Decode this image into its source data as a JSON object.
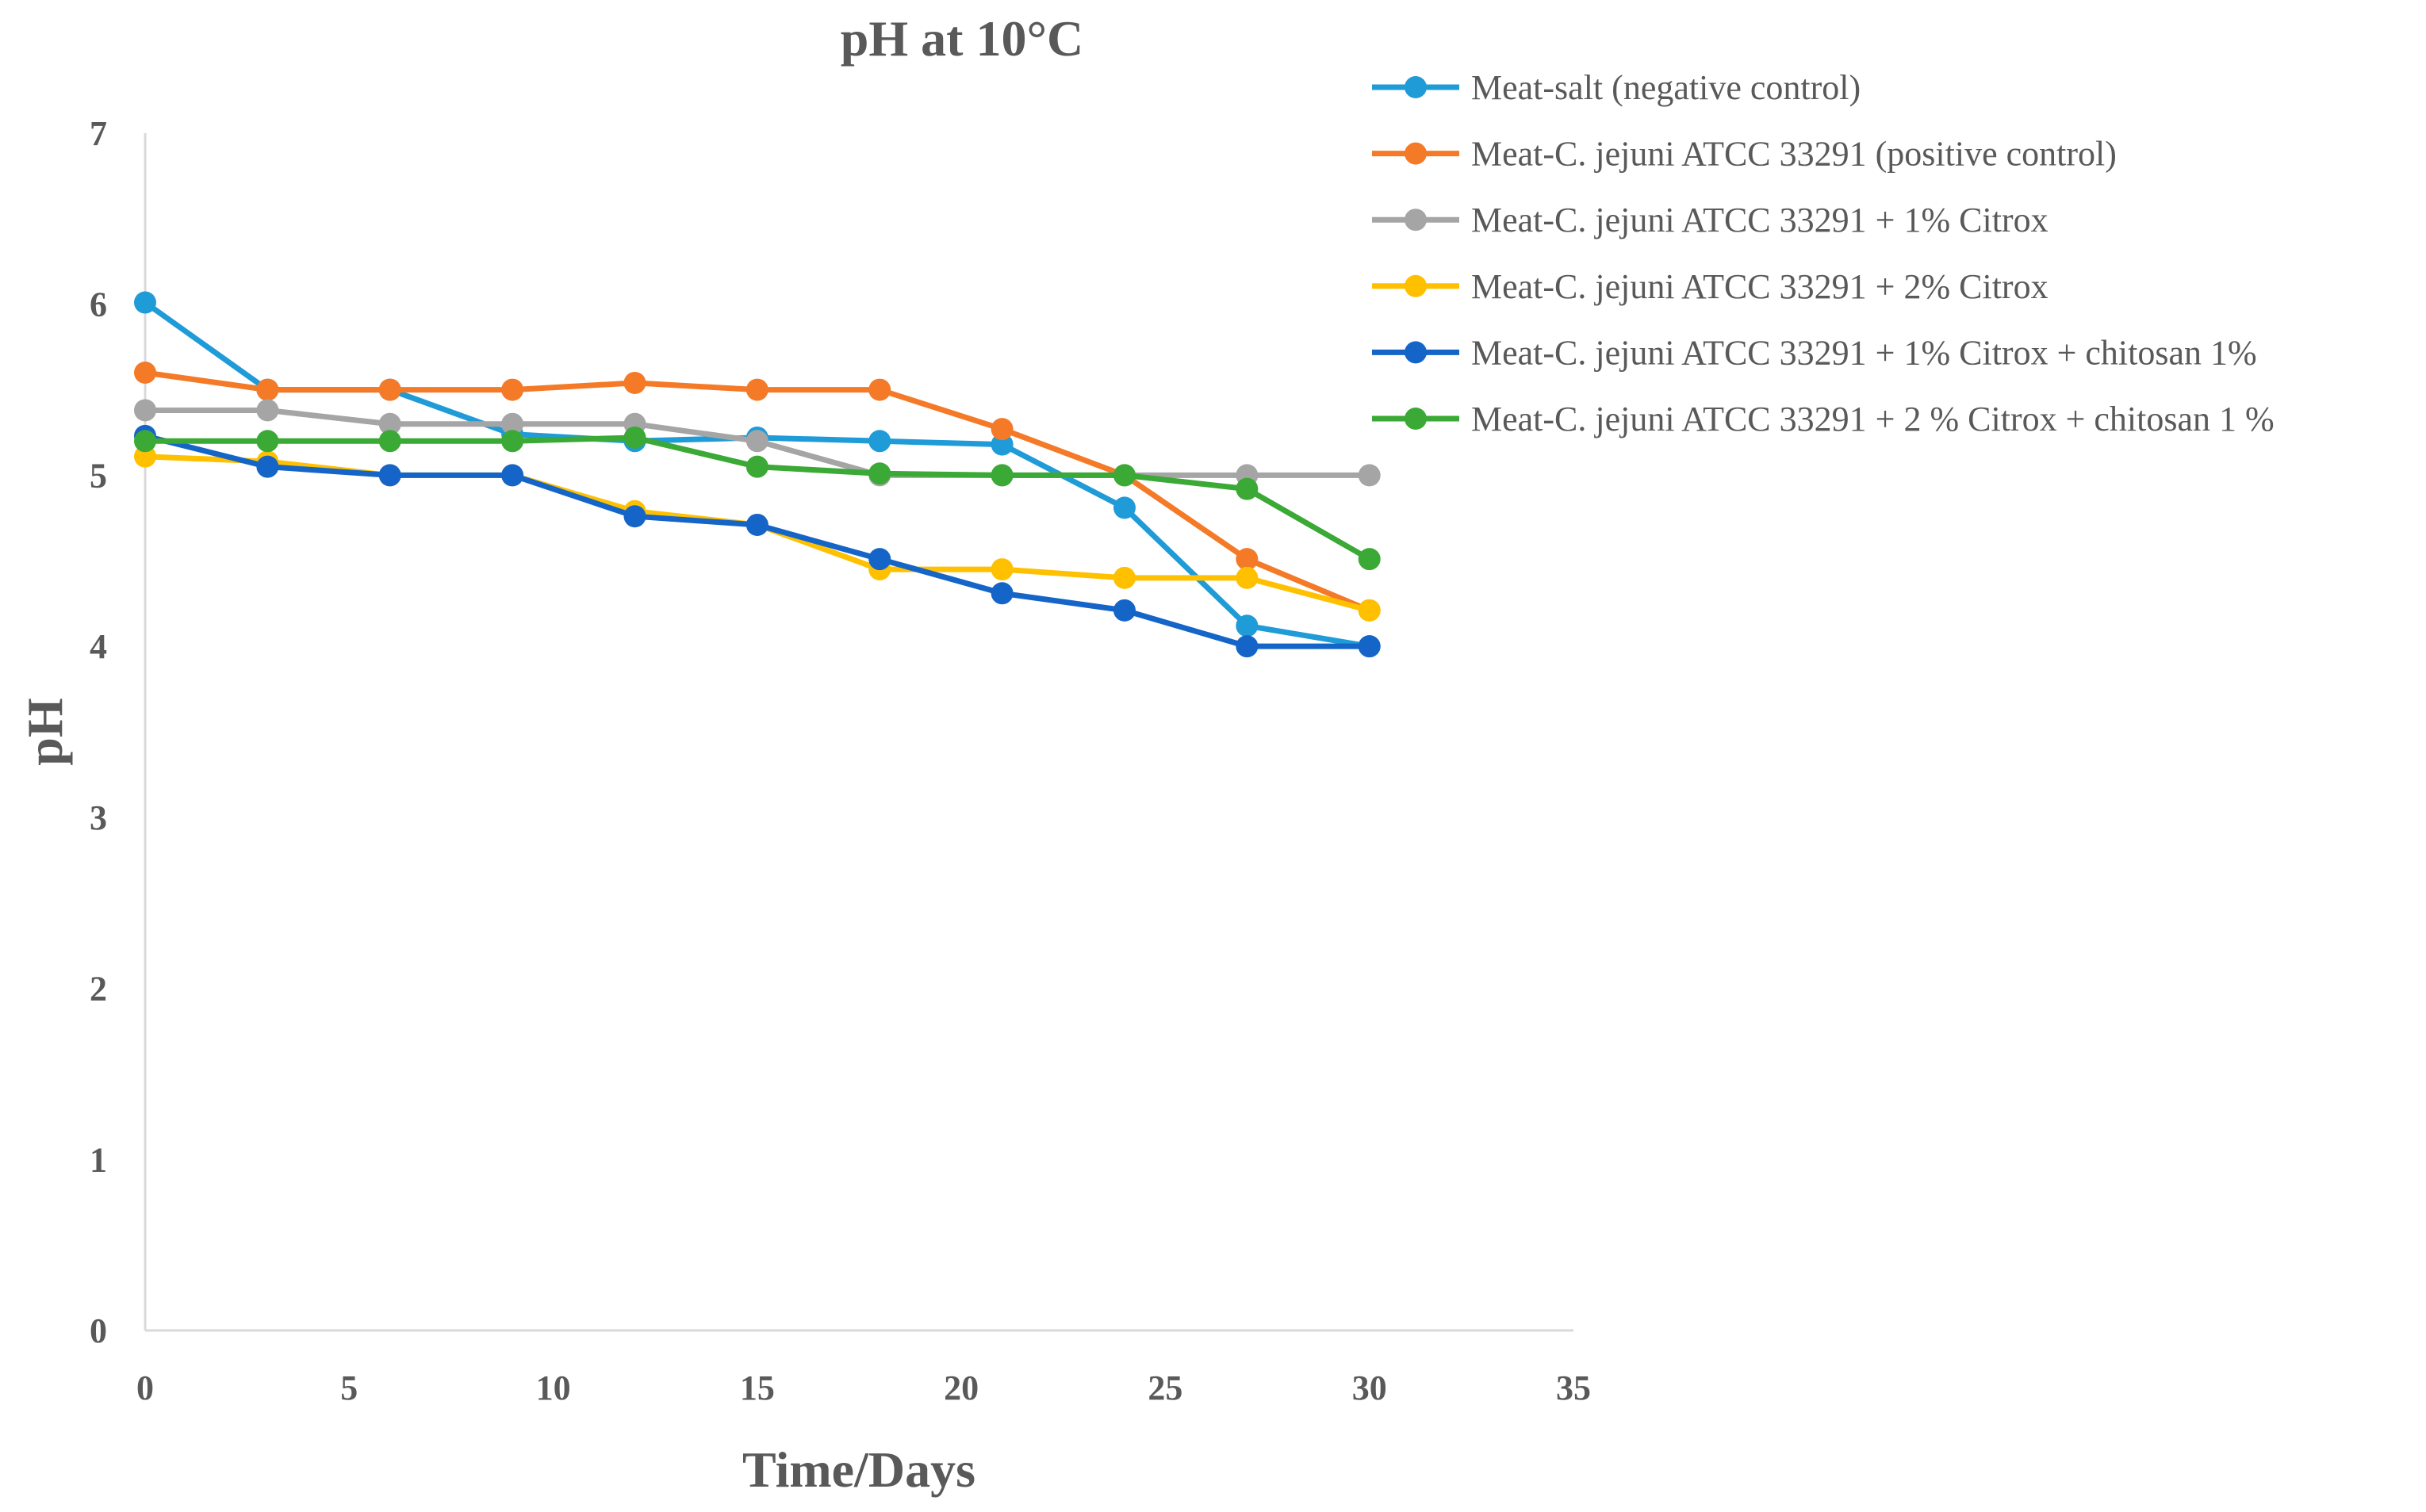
{
  "chart_data": {
    "type": "line",
    "title": "pH at 10°C",
    "xlabel": "Time/Days",
    "ylabel": "pH",
    "xlim": [
      0,
      35
    ],
    "ylim": [
      0,
      7
    ],
    "xticks": [
      0,
      5,
      10,
      15,
      20,
      25,
      30,
      35
    ],
    "yticks": [
      0,
      1,
      2,
      3,
      4,
      5,
      6,
      7
    ],
    "grid": false,
    "legend_position": "top-right",
    "x": [
      0,
      3,
      6,
      9,
      12,
      15,
      18,
      21,
      24,
      27,
      30
    ],
    "series": [
      {
        "name": "Meat-salt (negative control)",
        "color": "#1f9bd7",
        "values": [
          6.01,
          5.5,
          5.5,
          5.24,
          5.2,
          5.22,
          5.2,
          5.18,
          4.81,
          4.12,
          4.0
        ]
      },
      {
        "name": "Meat-C. jejuni ATCC 33291 (positive control)",
        "color": "#f47a28",
        "values": [
          5.6,
          5.5,
          5.5,
          5.5,
          5.54,
          5.5,
          5.5,
          5.27,
          5.0,
          4.51,
          4.21
        ]
      },
      {
        "name": "Meat-C. jejuni ATCC 33291 + 1% Citrox",
        "color": "#a5a5a5",
        "values": [
          5.38,
          5.38,
          5.3,
          5.3,
          5.3,
          5.2,
          5.0,
          5.0,
          5.0,
          5.0,
          5.0
        ]
      },
      {
        "name": "Meat-C. jejuni ATCC 33291 + 2% Citrox",
        "color": "#ffc000",
        "values": [
          5.11,
          5.08,
          5.0,
          5.0,
          4.79,
          4.71,
          4.45,
          4.45,
          4.4,
          4.4,
          4.21
        ]
      },
      {
        "name": "Meat-C. jejuni ATCC 33291 + 1% Citrox + chitosan 1%",
        "color": "#1565c8",
        "values": [
          5.23,
          5.05,
          5.0,
          5.0,
          4.76,
          4.71,
          4.51,
          4.31,
          4.21,
          4.0,
          4.0
        ]
      },
      {
        "name": "Meat-C. jejuni ATCC 33291 + 2 % Citrox + chitosan 1 %",
        "color": "#3aa935",
        "values": [
          5.2,
          5.2,
          5.2,
          5.2,
          5.22,
          5.05,
          5.01,
          5.0,
          5.0,
          4.92,
          4.51
        ]
      }
    ]
  }
}
